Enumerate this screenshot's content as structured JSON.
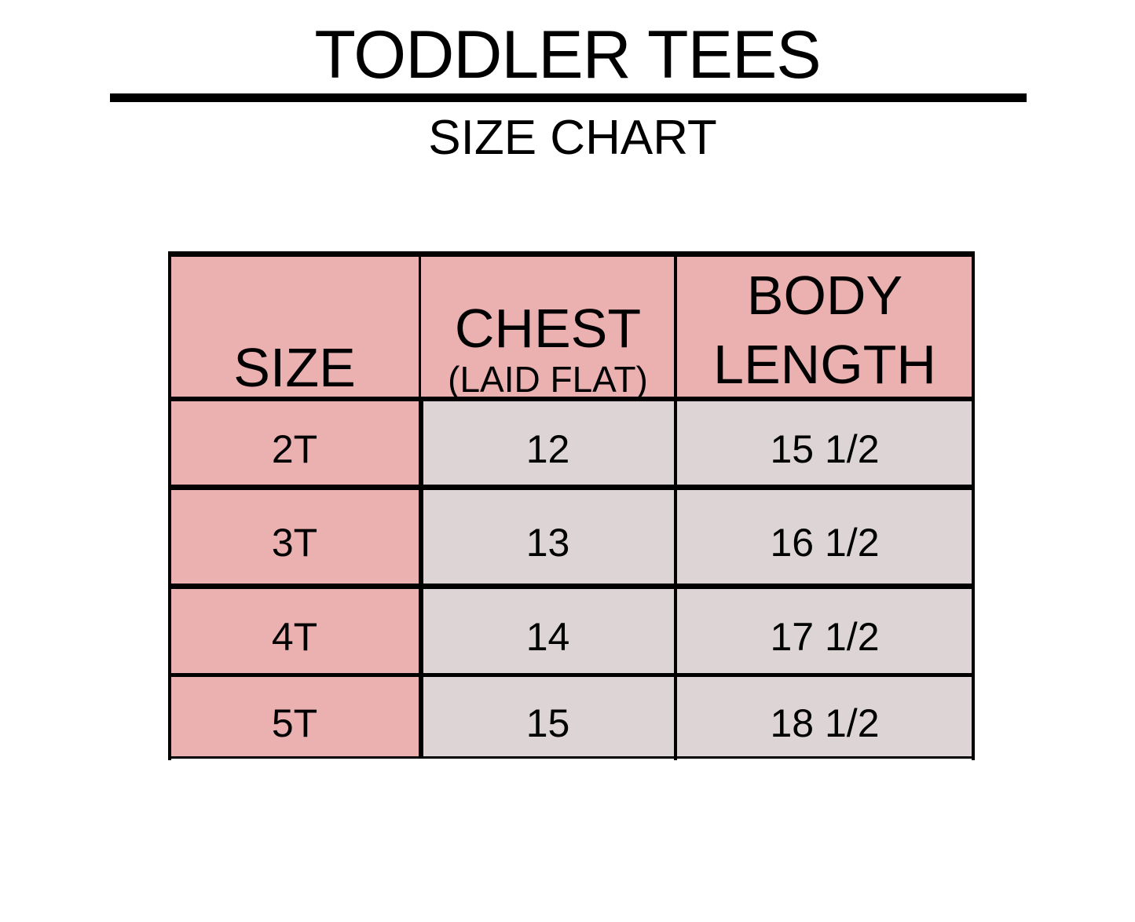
{
  "title": "TODDLER TEES",
  "subtitle": "SIZE CHART",
  "colors": {
    "header": "#ebb1b1",
    "size_column": "#ebb1b1",
    "data_cells": "#ddd5d5",
    "borders": "#000000"
  },
  "table": {
    "headers": {
      "size": "SIZE",
      "chest": "CHEST",
      "chest_note": "(LAID FLAT)",
      "body_length_1": "BODY",
      "body_length_2": "LENGTH"
    },
    "rows": [
      {
        "size": "2T",
        "chest": "12",
        "length": "15 1/2"
      },
      {
        "size": "3T",
        "chest": "13",
        "length": "16 1/2"
      },
      {
        "size": "4T",
        "chest": "14",
        "length": "17 1/2"
      },
      {
        "size": "5T",
        "chest": "15",
        "length": "18 1/2"
      }
    ]
  }
}
